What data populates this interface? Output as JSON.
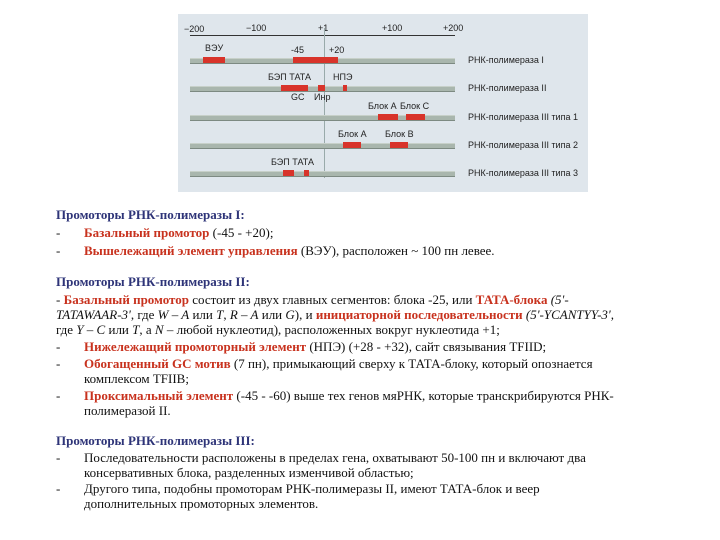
{
  "figure": {
    "axis_ticks": [
      "−200",
      "−100",
      "+1",
      "+100",
      "+200"
    ],
    "rows": [
      {
        "label": "РНК-полимераза I",
        "marks": [
          "ВЭУ",
          "-45",
          "+20"
        ]
      },
      {
        "label": "РНК-полимераза II",
        "marks": [
          "БЭП ТАТА",
          "НПЭ",
          "GC",
          "Инр"
        ]
      },
      {
        "label": "РНК-полимераза III типа 1",
        "marks": [
          "Блок А",
          "Блок С"
        ]
      },
      {
        "label": "РНК-полимераза III типа 2",
        "marks": [
          "Блок А",
          "Блок В"
        ]
      },
      {
        "label": "РНК-полимераза III типа 3",
        "marks": [
          "БЭП ТАТА"
        ]
      }
    ],
    "colors": {
      "background": "#dfe6ec",
      "element": "#d8332a",
      "gene": "#a9b6ad"
    }
  },
  "pol1": {
    "heading": "Промоторы РНК-полимеразы I:",
    "i1": {
      "a": "Базальный промотор",
      "b": " (-45 - +20);"
    },
    "i2": {
      "a": "Вышележащий элемент управления",
      "b": " (ВЭУ), расположен ~ 100 пн левее."
    }
  },
  "pol2": {
    "heading": "Промоторы РНК-полимеразы II:",
    "p1": {
      "a": "- ",
      "b": "Базальный промотор",
      "c": " состоит из двух главных сегментов: блока -25, или ",
      "d": "ТАТА-блока",
      "e": " (5'-",
      "f": "TATAWAAR-3'",
      "g": ", где ",
      "h": "W – A",
      "i": " или ",
      "j": "T",
      "k": ", ",
      "l": "R – A",
      "m": " или ",
      "n": "G",
      "o": "), и ",
      "p": "инициаторной последовательности",
      "q": " (5'-YCANTYY-3',",
      "r": "где ",
      "s": "Y – C",
      "t": " или ",
      "u": "T",
      "v": ", а ",
      "w": "N",
      "x": " – любой нуклеотид), расположенных вокруг нуклеотида +1;"
    },
    "i2": {
      "a": "Нижележащий промоторный элемент",
      "b": " (НПЭ) (+28 - +32), сайт связывания TFIID;"
    },
    "i3": {
      "a": "Обогащенный GC мотив",
      "b": " (7 пн), примыкающий сверху к ТАТА-блоку, который опознается",
      "c": "комплексом TFIIB;"
    },
    "i4": {
      "a": "Проксимальный элемент",
      "b": " (-45 - -60) выше тех генов мяРНК, которые транскрибируются РНК-",
      "c": "полимеразой II."
    }
  },
  "pol3": {
    "heading": "Промоторы РНК-полимеразы III:",
    "i1": {
      "a": "Последовательности расположены в пределах гена, охватывают 50-100 пн и включают два",
      "b": "консервативных блока, разделенных изменчивой областью;"
    },
    "i2": {
      "a": "Другого типа, подобны промоторам РНК-полимеразы II, имеют ТАТА-блок и веер",
      "b": "дополнительных промоторных элементов."
    }
  },
  "dash": "-"
}
